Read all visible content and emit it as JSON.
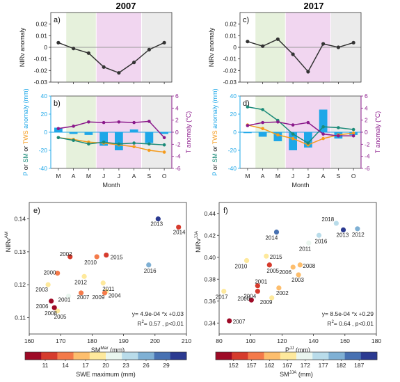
{
  "chart_data": [
    {
      "panel": "a)",
      "title": "2007",
      "type": "line",
      "ylabel": "NIRv anomaly",
      "ylim": [
        -0.03,
        0.03
      ],
      "yticks": [
        "0.02",
        "0.01",
        "0",
        "-0.01",
        "-0.02",
        "-0.03"
      ],
      "categories": [
        "M",
        "A",
        "M",
        "J",
        "J",
        "A",
        "S",
        "O"
      ],
      "series": [
        {
          "values": [
            0.004,
            -0.001,
            -0.005,
            -0.017,
            -0.022,
            -0.013,
            -0.002,
            0.004
          ]
        }
      ],
      "colors": {
        "line": "#333333"
      }
    },
    {
      "panel": "b)",
      "type": "bar+line",
      "ylabel_parts": [
        {
          "text": "P",
          "color": "#1ea7e8"
        },
        {
          "text": " or ",
          "color": "#222222"
        },
        {
          "text": "SM",
          "color": "#1a8a78"
        },
        {
          "text": " or ",
          "color": "#222222"
        },
        {
          "text": "TWS",
          "color": "#f59b1c"
        },
        {
          "text": " anomaly (mm)",
          "color": "#1ea7e8"
        }
      ],
      "y2label": "T anomaly (°C)",
      "xlabel": "Month",
      "ylim": [
        -40,
        40
      ],
      "y2lim": [
        -6,
        6
      ],
      "yticks": [
        "40",
        "20",
        "0",
        "-20",
        "-40"
      ],
      "y2ticks": [
        "6",
        "4",
        "2",
        "0",
        "-2",
        "-4",
        "-6"
      ],
      "categories": [
        "M",
        "A",
        "M",
        "J",
        "J",
        "A",
        "S",
        "O"
      ],
      "bars": [
        5,
        -2,
        -3,
        -15,
        -20,
        3,
        -12,
        -2
      ],
      "sm": [
        -6,
        -9,
        -13,
        -11,
        -13,
        -12,
        -13,
        -14
      ],
      "tws": [
        -6,
        -8,
        -11,
        -12,
        -14,
        -16,
        -20,
        -22
      ],
      "t": [
        0.6,
        1.0,
        1.7,
        1.6,
        1.7,
        1.6,
        1.8,
        -0.9
      ],
      "colors": {
        "bars": "#1ea7e8",
        "sm": "#1a8a78",
        "tws": "#f59b1c",
        "t": "#8b1a8b"
      }
    },
    {
      "panel": "c)",
      "title": "2017",
      "type": "line",
      "ylabel": "NIRv anomaly",
      "ylim": [
        -0.03,
        0.03
      ],
      "yticks": [
        "0.02",
        "0.01",
        "0",
        "-0.01",
        "-0.02",
        "-0.03"
      ],
      "categories": [
        "M",
        "A",
        "M",
        "J",
        "J",
        "A",
        "S",
        "O"
      ],
      "series": [
        {
          "values": [
            0.005,
            0.001,
            0.007,
            -0.006,
            -0.021,
            0.003,
            0.0,
            0.004
          ]
        }
      ],
      "colors": {
        "line": "#333333"
      }
    },
    {
      "panel": "d)",
      "type": "bar+line",
      "ylabel_parts": [
        {
          "text": "P",
          "color": "#1ea7e8"
        },
        {
          "text": " or ",
          "color": "#222222"
        },
        {
          "text": "SM",
          "color": "#1a8a78"
        },
        {
          "text": " or ",
          "color": "#222222"
        },
        {
          "text": "TWS",
          "color": "#f59b1c"
        },
        {
          "text": " anomaly (mm)",
          "color": "#1ea7e8"
        }
      ],
      "y2label": "T anomaly (°C)",
      "xlabel": "Month",
      "ylim": [
        -40,
        40
      ],
      "y2lim": [
        -6,
        6
      ],
      "yticks": [
        "40",
        "20",
        "0",
        "-20",
        "-40"
      ],
      "y2ticks": [
        "6",
        "4",
        "2",
        "0",
        "-2",
        "-4",
        "-6"
      ],
      "categories": [
        "M",
        "A",
        "M",
        "J",
        "J",
        "A",
        "S",
        "O"
      ],
      "bars": [
        -1,
        -5,
        -10,
        -20,
        -17,
        25,
        -7,
        -3
      ],
      "sm": [
        28,
        25,
        13,
        -2,
        -12,
        6,
        5,
        3
      ],
      "tws": [
        8,
        4,
        -3,
        -7,
        -14,
        -7,
        -3,
        -1
      ],
      "t": [
        1.1,
        1.6,
        1.7,
        1.2,
        1.6,
        -0.3,
        -0.6,
        -0.6
      ],
      "colors": {
        "bars": "#1ea7e8",
        "sm": "#1a8a78",
        "tws": "#f59b1c",
        "t": "#8b1a8b"
      }
    },
    {
      "panel": "e)",
      "type": "scatter",
      "xlabel": "SM",
      "xlabel_sup": "Mar",
      "xlabel_unit": " (mm)",
      "ylabel": "NIRv",
      "ylabel_sup": "AM",
      "xlim": [
        160,
        210
      ],
      "ylim": [
        0.105,
        0.145
      ],
      "xticks": [
        "160",
        "170",
        "180",
        "190",
        "200",
        "210"
      ],
      "yticks": [
        "0.14",
        "0.13",
        "0.12",
        "0.11"
      ],
      "points": [
        {
          "label": "2000",
          "x": 169.0,
          "y": 0.1235,
          "c": 15
        },
        {
          "label": "2001",
          "x": 172.5,
          "y": 0.1165,
          "c": 22
        },
        {
          "label": "2002",
          "x": 173.0,
          "y": 0.1285,
          "c": 11
        },
        {
          "label": "2003",
          "x": 166.0,
          "y": 0.12,
          "c": 19
        },
        {
          "label": "2004",
          "x": 184.5,
          "y": 0.118,
          "c": 19
        },
        {
          "label": "2005",
          "x": 169.0,
          "y": 0.112,
          "c": 18
        },
        {
          "label": "2006",
          "x": 167.0,
          "y": 0.115,
          "c": 9
        },
        {
          "label": "2007",
          "x": 176.5,
          "y": 0.1175,
          "c": 13
        },
        {
          "label": "2008",
          "x": 168.0,
          "y": 0.113,
          "c": 9
        },
        {
          "label": "2009",
          "x": 184.0,
          "y": 0.1175,
          "c": 14
        },
        {
          "label": "2010",
          "x": 181.5,
          "y": 0.1285,
          "c": 14
        },
        {
          "label": "2011",
          "x": 183.5,
          "y": 0.1205,
          "c": 18
        },
        {
          "label": "2012",
          "x": 177.5,
          "y": 0.1225,
          "c": 18
        },
        {
          "label": "2013",
          "x": 201.0,
          "y": 0.14,
          "c": 31
        },
        {
          "label": "2014",
          "x": 207.5,
          "y": 0.1375,
          "c": 12
        },
        {
          "label": "2015",
          "x": 184.5,
          "y": 0.129,
          "c": 11
        },
        {
          "label": "2016",
          "x": 198.0,
          "y": 0.126,
          "c": 25
        }
      ],
      "annotation_eq": "y= 4.9e-04 *x +0.03",
      "annotation_r2": "R",
      "annotation_r2_sup": "2",
      "annotation_r2_rest": "= 0.57 , p<0.01"
    },
    {
      "panel": "f)",
      "type": "scatter",
      "xlabel": "P",
      "xlabel_sup": "JJ",
      "xlabel_unit": " (mm)",
      "ylabel": "NIRv",
      "ylabel_sup": "JJA",
      "xlim": [
        80,
        180
      ],
      "ylim": [
        0.33,
        0.45
      ],
      "xticks": [
        "80",
        "100",
        "120",
        "140",
        "160",
        "180"
      ],
      "yticks": [
        "0.44",
        "0.42",
        "0.40",
        "0.38",
        "0.36",
        "0.34"
      ],
      "points": [
        {
          "label": "2000",
          "x": 100.5,
          "y": 0.361,
          "c": 150
        },
        {
          "label": "2001",
          "x": 104.5,
          "y": 0.374,
          "c": 152
        },
        {
          "label": "2002",
          "x": 118.0,
          "y": 0.372,
          "c": 162
        },
        {
          "label": "2003",
          "x": 130.5,
          "y": 0.384,
          "c": 163
        },
        {
          "label": "2004",
          "x": 104.5,
          "y": 0.369,
          "c": 155
        },
        {
          "label": "2005",
          "x": 112.0,
          "y": 0.393,
          "c": 153
        },
        {
          "label": "2006",
          "x": 127.0,
          "y": 0.391,
          "c": 161
        },
        {
          "label": "2007",
          "x": 86.5,
          "y": 0.342,
          "c": 147
        },
        {
          "label": "2008",
          "x": 131.5,
          "y": 0.393,
          "c": 161
        },
        {
          "label": "2009",
          "x": 113.5,
          "y": 0.363,
          "c": 166
        },
        {
          "label": "2010",
          "x": 97.5,
          "y": 0.397,
          "c": 168
        },
        {
          "label": "2011",
          "x": 137.0,
          "y": 0.413,
          "c": 172
        },
        {
          "label": "2012",
          "x": 168.0,
          "y": 0.426,
          "c": 182
        },
        {
          "label": "2013",
          "x": 159.0,
          "y": 0.425,
          "c": 190
        },
        {
          "label": "2014",
          "x": 116.5,
          "y": 0.423,
          "c": 186
        },
        {
          "label": "2015",
          "x": 110.0,
          "y": 0.401,
          "c": 167
        },
        {
          "label": "2016",
          "x": 143.5,
          "y": 0.42,
          "c": 177
        },
        {
          "label": "2017",
          "x": 83.0,
          "y": 0.369,
          "c": 167
        },
        {
          "label": "2018",
          "x": 154.5,
          "y": 0.431,
          "c": 178
        }
      ],
      "annotation_eq": "y= 8.5e-04 *x +0.29",
      "annotation_r2": "R",
      "annotation_r2_sup": "2",
      "annotation_r2_rest": "= 0.64 , p<0.01"
    }
  ],
  "colorbars": [
    {
      "label": "SWE maximum (mm)",
      "range": [
        8,
        32
      ],
      "ticks": [
        "11",
        "14",
        "17",
        "20",
        "23",
        "26",
        "29"
      ],
      "colors": [
        "#9e0a26",
        "#d63b2d",
        "#f47a4a",
        "#fdbe6d",
        "#fee99c",
        "#eaf6ef",
        "#b9dcea",
        "#7fb0d4",
        "#4771b2",
        "#2b3a91"
      ]
    },
    {
      "label_main": "SM",
      "label_sup": "JJA",
      "label_rest": " (mm)",
      "range": [
        147,
        192
      ],
      "ticks": [
        "152",
        "157",
        "162",
        "167",
        "172",
        "177",
        "182",
        "187"
      ],
      "colors": [
        "#9e0a26",
        "#d63b2d",
        "#f47a4a",
        "#fdbe6d",
        "#fee99c",
        "#eaf6ef",
        "#b9dcea",
        "#7fb0d4",
        "#4771b2",
        "#2b3a91"
      ]
    }
  ],
  "palette": {
    "green_band": "#e6f1dc",
    "purple_band": "#f1d6f0",
    "grey_band": "#ebebeb"
  }
}
